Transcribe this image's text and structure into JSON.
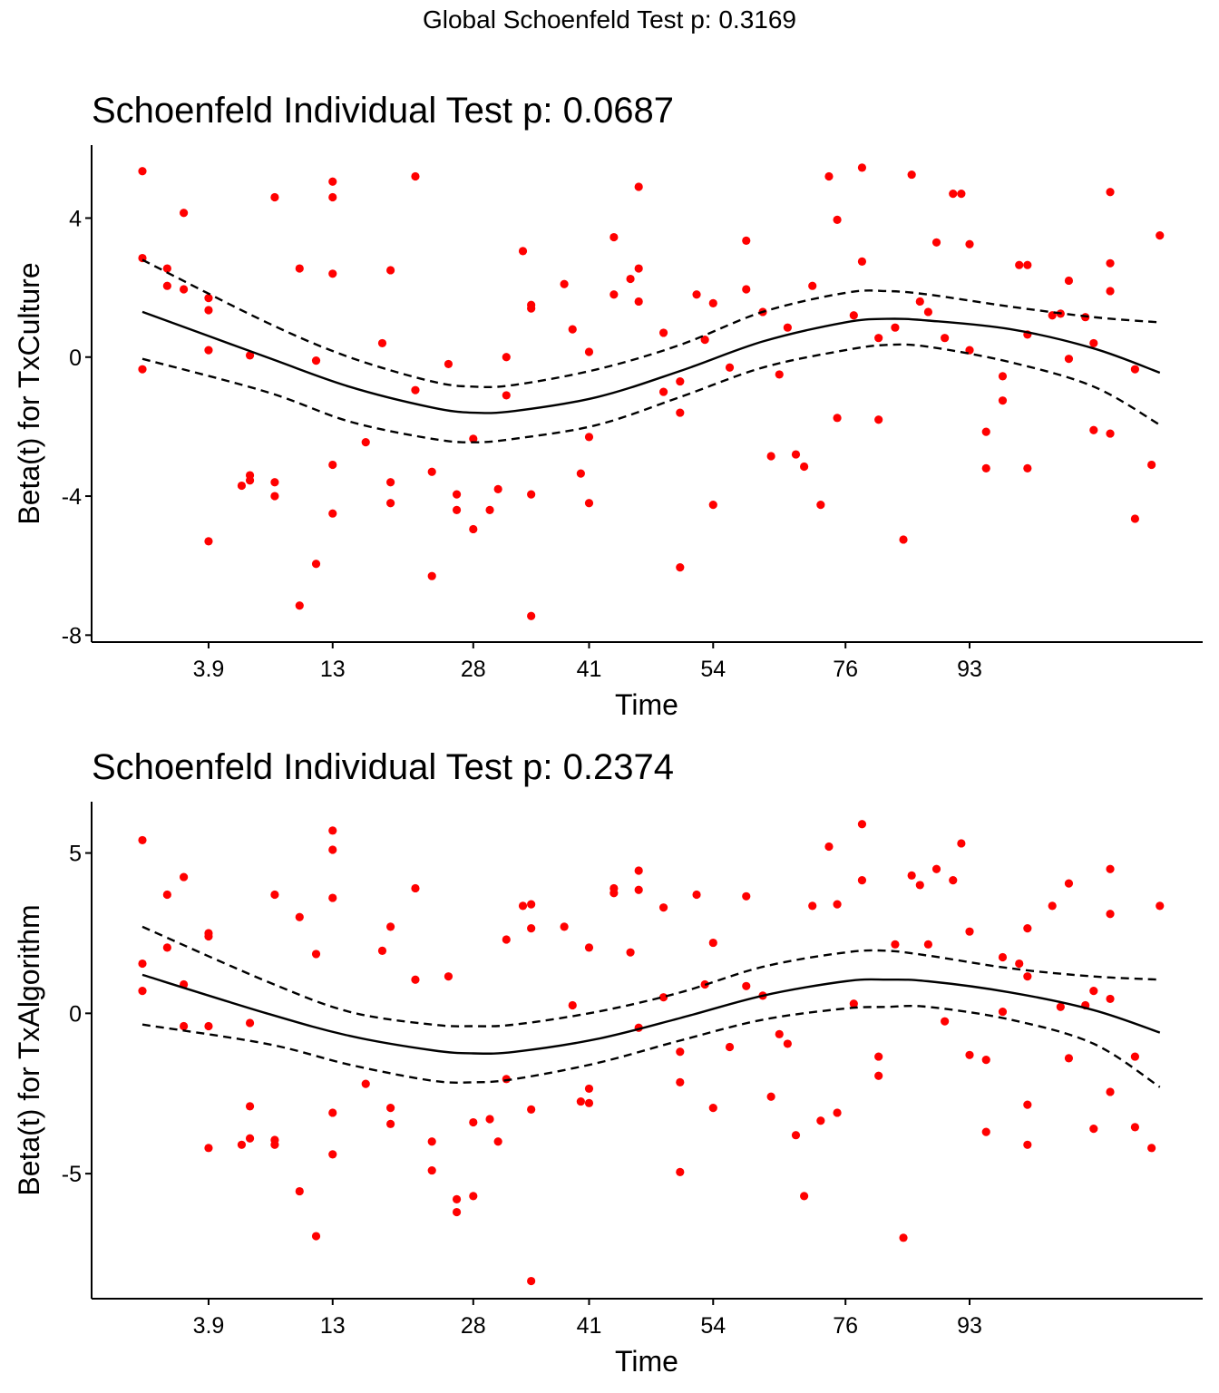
{
  "global_title": "Global Schoenfeld Test p: 0.3169",
  "colors": {
    "points": "#ff0000",
    "lines": "#000000",
    "background": "#ffffff"
  },
  "chart_data": [
    {
      "type": "scatter",
      "title": "Schoenfeld Individual Test p: 0.0687",
      "xlabel": "Time",
      "ylabel": "Beta(t) for TxCulture",
      "x_tick_labels": [
        "3.9",
        "13",
        "28",
        "41",
        "54",
        "76",
        "93"
      ],
      "y_ticks": [
        -8,
        -4,
        0,
        4
      ],
      "y_tick_labels": [
        "-8",
        "-4",
        "0",
        "4"
      ],
      "ylim": [
        -8.2,
        6.1
      ],
      "grid": false,
      "legend": "none",
      "points": [
        [
          1.0,
          5.35
        ],
        [
          1.0,
          2.85
        ],
        [
          1.0,
          -0.35
        ],
        [
          1.3,
          2.55
        ],
        [
          1.3,
          2.05
        ],
        [
          1.5,
          4.15
        ],
        [
          1.5,
          1.95
        ],
        [
          1.8,
          1.7
        ],
        [
          1.8,
          1.35
        ],
        [
          1.8,
          0.2
        ],
        [
          1.8,
          -5.3
        ],
        [
          2.2,
          -3.7
        ],
        [
          2.3,
          -3.55
        ],
        [
          2.3,
          -3.4
        ],
        [
          2.3,
          0.05
        ],
        [
          2.6,
          4.6
        ],
        [
          2.6,
          -3.6
        ],
        [
          2.6,
          -4.0
        ],
        [
          2.9,
          2.55
        ],
        [
          2.9,
          -7.15
        ],
        [
          3.1,
          -0.1
        ],
        [
          3.1,
          -5.95
        ],
        [
          3.3,
          5.05
        ],
        [
          3.3,
          4.6
        ],
        [
          3.3,
          2.4
        ],
        [
          3.3,
          -3.1
        ],
        [
          3.3,
          -4.5
        ],
        [
          3.7,
          -2.45
        ],
        [
          3.9,
          0.4
        ],
        [
          4.0,
          2.5
        ],
        [
          4.0,
          -3.6
        ],
        [
          4.0,
          -4.2
        ],
        [
          4.3,
          -0.95
        ],
        [
          4.3,
          5.2
        ],
        [
          4.5,
          -3.3
        ],
        [
          4.5,
          -6.3
        ],
        [
          4.7,
          -0.2
        ],
        [
          4.8,
          -3.95
        ],
        [
          4.8,
          -4.4
        ],
        [
          5.0,
          -2.35
        ],
        [
          5.0,
          -4.95
        ],
        [
          5.2,
          -4.4
        ],
        [
          5.3,
          -3.8
        ],
        [
          5.4,
          0.0
        ],
        [
          5.4,
          -1.1
        ],
        [
          5.6,
          3.05
        ],
        [
          5.7,
          1.5
        ],
        [
          5.7,
          1.4
        ],
        [
          5.7,
          -3.95
        ],
        [
          5.7,
          -7.45
        ],
        [
          6.1,
          2.1
        ],
        [
          6.2,
          0.8
        ],
        [
          6.3,
          -3.35
        ],
        [
          6.4,
          0.15
        ],
        [
          6.4,
          -2.3
        ],
        [
          6.4,
          -4.2
        ],
        [
          6.7,
          3.45
        ],
        [
          6.7,
          1.8
        ],
        [
          6.9,
          2.25
        ],
        [
          7.0,
          4.9
        ],
        [
          7.0,
          2.55
        ],
        [
          7.0,
          1.6
        ],
        [
          7.3,
          0.7
        ],
        [
          7.3,
          -1.0
        ],
        [
          7.5,
          -0.7
        ],
        [
          7.5,
          -1.6
        ],
        [
          7.5,
          -6.05
        ],
        [
          7.7,
          1.8
        ],
        [
          7.8,
          0.5
        ],
        [
          7.9,
          1.55
        ],
        [
          7.9,
          -4.25
        ],
        [
          8.1,
          -0.3
        ],
        [
          8.3,
          3.35
        ],
        [
          8.3,
          1.95
        ],
        [
          8.5,
          1.3
        ],
        [
          8.6,
          -2.85
        ],
        [
          8.7,
          -0.5
        ],
        [
          8.8,
          0.85
        ],
        [
          8.9,
          -2.8
        ],
        [
          9.0,
          -3.15
        ],
        [
          9.1,
          2.05
        ],
        [
          9.2,
          -4.25
        ],
        [
          9.3,
          5.2
        ],
        [
          9.4,
          3.95
        ],
        [
          9.4,
          -1.75
        ],
        [
          9.6,
          1.2
        ],
        [
          9.7,
          5.45
        ],
        [
          9.7,
          2.75
        ],
        [
          9.9,
          0.55
        ],
        [
          9.9,
          -1.8
        ],
        [
          10.1,
          0.85
        ],
        [
          10.2,
          -5.25
        ],
        [
          10.3,
          5.25
        ],
        [
          10.4,
          1.6
        ],
        [
          10.5,
          1.3
        ],
        [
          10.6,
          3.3
        ],
        [
          10.7,
          0.55
        ],
        [
          10.8,
          4.7
        ],
        [
          10.9,
          4.7
        ],
        [
          11.0,
          3.25
        ],
        [
          11.0,
          0.2
        ],
        [
          11.2,
          -2.15
        ],
        [
          11.2,
          -3.2
        ],
        [
          11.4,
          -0.55
        ],
        [
          11.4,
          -1.25
        ],
        [
          11.6,
          2.65
        ],
        [
          11.7,
          2.65
        ],
        [
          11.7,
          0.65
        ],
        [
          11.7,
          -3.2
        ],
        [
          12.0,
          1.2
        ],
        [
          12.1,
          1.25
        ],
        [
          12.2,
          2.2
        ],
        [
          12.2,
          -0.05
        ],
        [
          12.4,
          1.15
        ],
        [
          12.5,
          0.4
        ],
        [
          12.5,
          -2.1
        ],
        [
          12.7,
          4.75
        ],
        [
          12.7,
          2.7
        ],
        [
          12.7,
          1.9
        ],
        [
          12.7,
          -2.2
        ],
        [
          13.0,
          -0.35
        ],
        [
          13.0,
          -4.65
        ],
        [
          13.2,
          -3.1
        ],
        [
          13.3,
          3.5
        ]
      ],
      "fit": [
        [
          1.0,
          1.3
        ],
        [
          2.5,
          0.0
        ],
        [
          3.5,
          -0.85
        ],
        [
          4.5,
          -1.45
        ],
        [
          5.0,
          -1.6
        ],
        [
          5.5,
          -1.55
        ],
        [
          6.5,
          -1.15
        ],
        [
          7.5,
          -0.4
        ],
        [
          8.5,
          0.45
        ],
        [
          9.5,
          1.0
        ],
        [
          10.0,
          1.1
        ],
        [
          10.5,
          1.05
        ],
        [
          11.5,
          0.8
        ],
        [
          12.5,
          0.25
        ],
        [
          13.3,
          -0.45
        ]
      ],
      "ci_upper": [
        [
          1.0,
          2.8
        ],
        [
          2.5,
          1.0
        ],
        [
          3.5,
          0.0
        ],
        [
          4.5,
          -0.7
        ],
        [
          5.0,
          -0.85
        ],
        [
          5.5,
          -0.8
        ],
        [
          6.5,
          -0.35
        ],
        [
          7.5,
          0.35
        ],
        [
          8.5,
          1.3
        ],
        [
          9.5,
          1.85
        ],
        [
          10.0,
          1.9
        ],
        [
          10.5,
          1.8
        ],
        [
          11.5,
          1.45
        ],
        [
          12.5,
          1.15
        ],
        [
          13.3,
          1.0
        ]
      ],
      "ci_lower": [
        [
          1.0,
          -0.05
        ],
        [
          2.5,
          -1.0
        ],
        [
          3.5,
          -1.85
        ],
        [
          4.5,
          -2.35
        ],
        [
          5.0,
          -2.45
        ],
        [
          5.5,
          -2.35
        ],
        [
          6.5,
          -1.95
        ],
        [
          7.5,
          -1.15
        ],
        [
          8.5,
          -0.3
        ],
        [
          9.5,
          0.2
        ],
        [
          10.0,
          0.35
        ],
        [
          10.5,
          0.3
        ],
        [
          11.5,
          -0.15
        ],
        [
          12.5,
          -0.85
        ],
        [
          13.3,
          -1.95
        ]
      ]
    },
    {
      "type": "scatter",
      "title": "Schoenfeld Individual Test p: 0.2374",
      "xlabel": "Time",
      "ylabel": "Beta(t) for TxAlgorithm",
      "x_tick_labels": [
        "3.9",
        "13",
        "28",
        "41",
        "54",
        "76",
        "93"
      ],
      "y_ticks": [
        -5,
        0,
        5
      ],
      "y_tick_labels": [
        "-5",
        "0",
        "5"
      ],
      "ylim": [
        -8.9,
        6.6
      ],
      "grid": false,
      "legend": "none",
      "points": [
        [
          1.0,
          5.4
        ],
        [
          1.0,
          1.55
        ],
        [
          1.0,
          0.7
        ],
        [
          1.3,
          3.7
        ],
        [
          1.3,
          2.05
        ],
        [
          1.5,
          4.25
        ],
        [
          1.5,
          0.9
        ],
        [
          1.5,
          -0.4
        ],
        [
          1.8,
          2.5
        ],
        [
          1.8,
          2.4
        ],
        [
          1.8,
          -0.4
        ],
        [
          1.8,
          -4.2
        ],
        [
          2.2,
          -4.1
        ],
        [
          2.3,
          -3.9
        ],
        [
          2.3,
          -2.9
        ],
        [
          2.3,
          -0.3
        ],
        [
          2.6,
          3.7
        ],
        [
          2.6,
          -3.95
        ],
        [
          2.6,
          -4.1
        ],
        [
          2.9,
          3.0
        ],
        [
          2.9,
          -5.55
        ],
        [
          3.1,
          1.85
        ],
        [
          3.1,
          -6.95
        ],
        [
          3.3,
          5.7
        ],
        [
          3.3,
          5.1
        ],
        [
          3.3,
          3.6
        ],
        [
          3.3,
          -3.1
        ],
        [
          3.3,
          -4.4
        ],
        [
          3.7,
          -2.2
        ],
        [
          3.9,
          1.95
        ],
        [
          4.0,
          2.7
        ],
        [
          4.0,
          -2.95
        ],
        [
          4.0,
          -3.45
        ],
        [
          4.3,
          3.9
        ],
        [
          4.3,
          1.05
        ],
        [
          4.5,
          -4.0
        ],
        [
          4.5,
          -4.9
        ],
        [
          4.7,
          1.15
        ],
        [
          4.8,
          -5.8
        ],
        [
          4.8,
          -6.2
        ],
        [
          5.0,
          -3.4
        ],
        [
          5.0,
          -5.7
        ],
        [
          5.2,
          -3.3
        ],
        [
          5.3,
          -4.0
        ],
        [
          5.4,
          2.3
        ],
        [
          5.4,
          -2.05
        ],
        [
          5.6,
          3.35
        ],
        [
          5.7,
          3.4
        ],
        [
          5.7,
          2.65
        ],
        [
          5.7,
          -3.0
        ],
        [
          5.7,
          -8.35
        ],
        [
          6.1,
          2.7
        ],
        [
          6.2,
          0.25
        ],
        [
          6.3,
          -2.75
        ],
        [
          6.4,
          2.05
        ],
        [
          6.4,
          -2.35
        ],
        [
          6.4,
          -2.8
        ],
        [
          6.7,
          3.9
        ],
        [
          6.7,
          3.75
        ],
        [
          6.9,
          1.9
        ],
        [
          7.0,
          4.45
        ],
        [
          7.0,
          3.85
        ],
        [
          7.0,
          -0.45
        ],
        [
          7.3,
          3.3
        ],
        [
          7.3,
          0.5
        ],
        [
          7.5,
          -1.2
        ],
        [
          7.5,
          -2.15
        ],
        [
          7.5,
          -4.95
        ],
        [
          7.7,
          3.7
        ],
        [
          7.8,
          0.9
        ],
        [
          7.9,
          2.2
        ],
        [
          7.9,
          -2.95
        ],
        [
          8.1,
          -1.05
        ],
        [
          8.3,
          3.65
        ],
        [
          8.3,
          0.85
        ],
        [
          8.5,
          0.55
        ],
        [
          8.6,
          -2.6
        ],
        [
          8.7,
          -0.65
        ],
        [
          8.8,
          -0.95
        ],
        [
          8.9,
          -3.8
        ],
        [
          9.0,
          -5.7
        ],
        [
          9.1,
          3.35
        ],
        [
          9.2,
          -3.35
        ],
        [
          9.3,
          5.2
        ],
        [
          9.4,
          3.4
        ],
        [
          9.4,
          -3.1
        ],
        [
          9.6,
          0.3
        ],
        [
          9.7,
          5.9
        ],
        [
          9.7,
          4.15
        ],
        [
          9.9,
          -1.35
        ],
        [
          9.9,
          -1.95
        ],
        [
          10.1,
          2.15
        ],
        [
          10.2,
          -7.0
        ],
        [
          10.3,
          4.3
        ],
        [
          10.4,
          4.0
        ],
        [
          10.5,
          2.15
        ],
        [
          10.6,
          4.5
        ],
        [
          10.7,
          -0.25
        ],
        [
          10.8,
          4.15
        ],
        [
          10.9,
          5.3
        ],
        [
          11.0,
          2.55
        ],
        [
          11.0,
          -1.3
        ],
        [
          11.2,
          -1.45
        ],
        [
          11.2,
          -3.7
        ],
        [
          11.4,
          1.75
        ],
        [
          11.4,
          0.05
        ],
        [
          11.6,
          1.55
        ],
        [
          11.7,
          2.65
        ],
        [
          11.7,
          1.15
        ],
        [
          11.7,
          -2.85
        ],
        [
          11.7,
          -4.1
        ],
        [
          12.0,
          3.35
        ],
        [
          12.1,
          0.2
        ],
        [
          12.2,
          4.05
        ],
        [
          12.2,
          -1.4
        ],
        [
          12.4,
          0.25
        ],
        [
          12.5,
          0.7
        ],
        [
          12.5,
          -3.6
        ],
        [
          12.7,
          4.5
        ],
        [
          12.7,
          3.1
        ],
        [
          12.7,
          0.45
        ],
        [
          12.7,
          -2.45
        ],
        [
          13.0,
          -1.35
        ],
        [
          13.0,
          -3.55
        ],
        [
          13.2,
          -4.2
        ],
        [
          13.3,
          3.35
        ]
      ],
      "fit": [
        [
          1.0,
          1.2
        ],
        [
          2.5,
          0.0
        ],
        [
          3.5,
          -0.7
        ],
        [
          4.5,
          -1.15
        ],
        [
          5.0,
          -1.25
        ],
        [
          5.5,
          -1.2
        ],
        [
          6.5,
          -0.8
        ],
        [
          7.5,
          -0.15
        ],
        [
          8.5,
          0.55
        ],
        [
          9.5,
          1.0
        ],
        [
          10.0,
          1.05
        ],
        [
          10.5,
          1.0
        ],
        [
          11.5,
          0.65
        ],
        [
          12.5,
          0.1
        ],
        [
          13.3,
          -0.6
        ]
      ],
      "ci_upper": [
        [
          1.0,
          2.7
        ],
        [
          2.5,
          1.0
        ],
        [
          3.5,
          0.05
        ],
        [
          4.5,
          -0.35
        ],
        [
          5.0,
          -0.4
        ],
        [
          5.5,
          -0.35
        ],
        [
          6.5,
          0.05
        ],
        [
          7.5,
          0.65
        ],
        [
          8.5,
          1.45
        ],
        [
          9.5,
          1.9
        ],
        [
          10.0,
          1.95
        ],
        [
          10.5,
          1.8
        ],
        [
          11.5,
          1.4
        ],
        [
          12.5,
          1.15
        ],
        [
          13.3,
          1.05
        ]
      ],
      "ci_lower": [
        [
          1.0,
          -0.35
        ],
        [
          2.5,
          -0.95
        ],
        [
          3.5,
          -1.6
        ],
        [
          4.5,
          -2.1
        ],
        [
          5.0,
          -2.15
        ],
        [
          5.5,
          -2.05
        ],
        [
          6.5,
          -1.55
        ],
        [
          7.5,
          -0.85
        ],
        [
          8.5,
          -0.2
        ],
        [
          9.5,
          0.15
        ],
        [
          10.0,
          0.2
        ],
        [
          10.5,
          0.2
        ],
        [
          11.5,
          -0.2
        ],
        [
          12.5,
          -0.95
        ],
        [
          13.3,
          -2.3
        ]
      ]
    }
  ]
}
